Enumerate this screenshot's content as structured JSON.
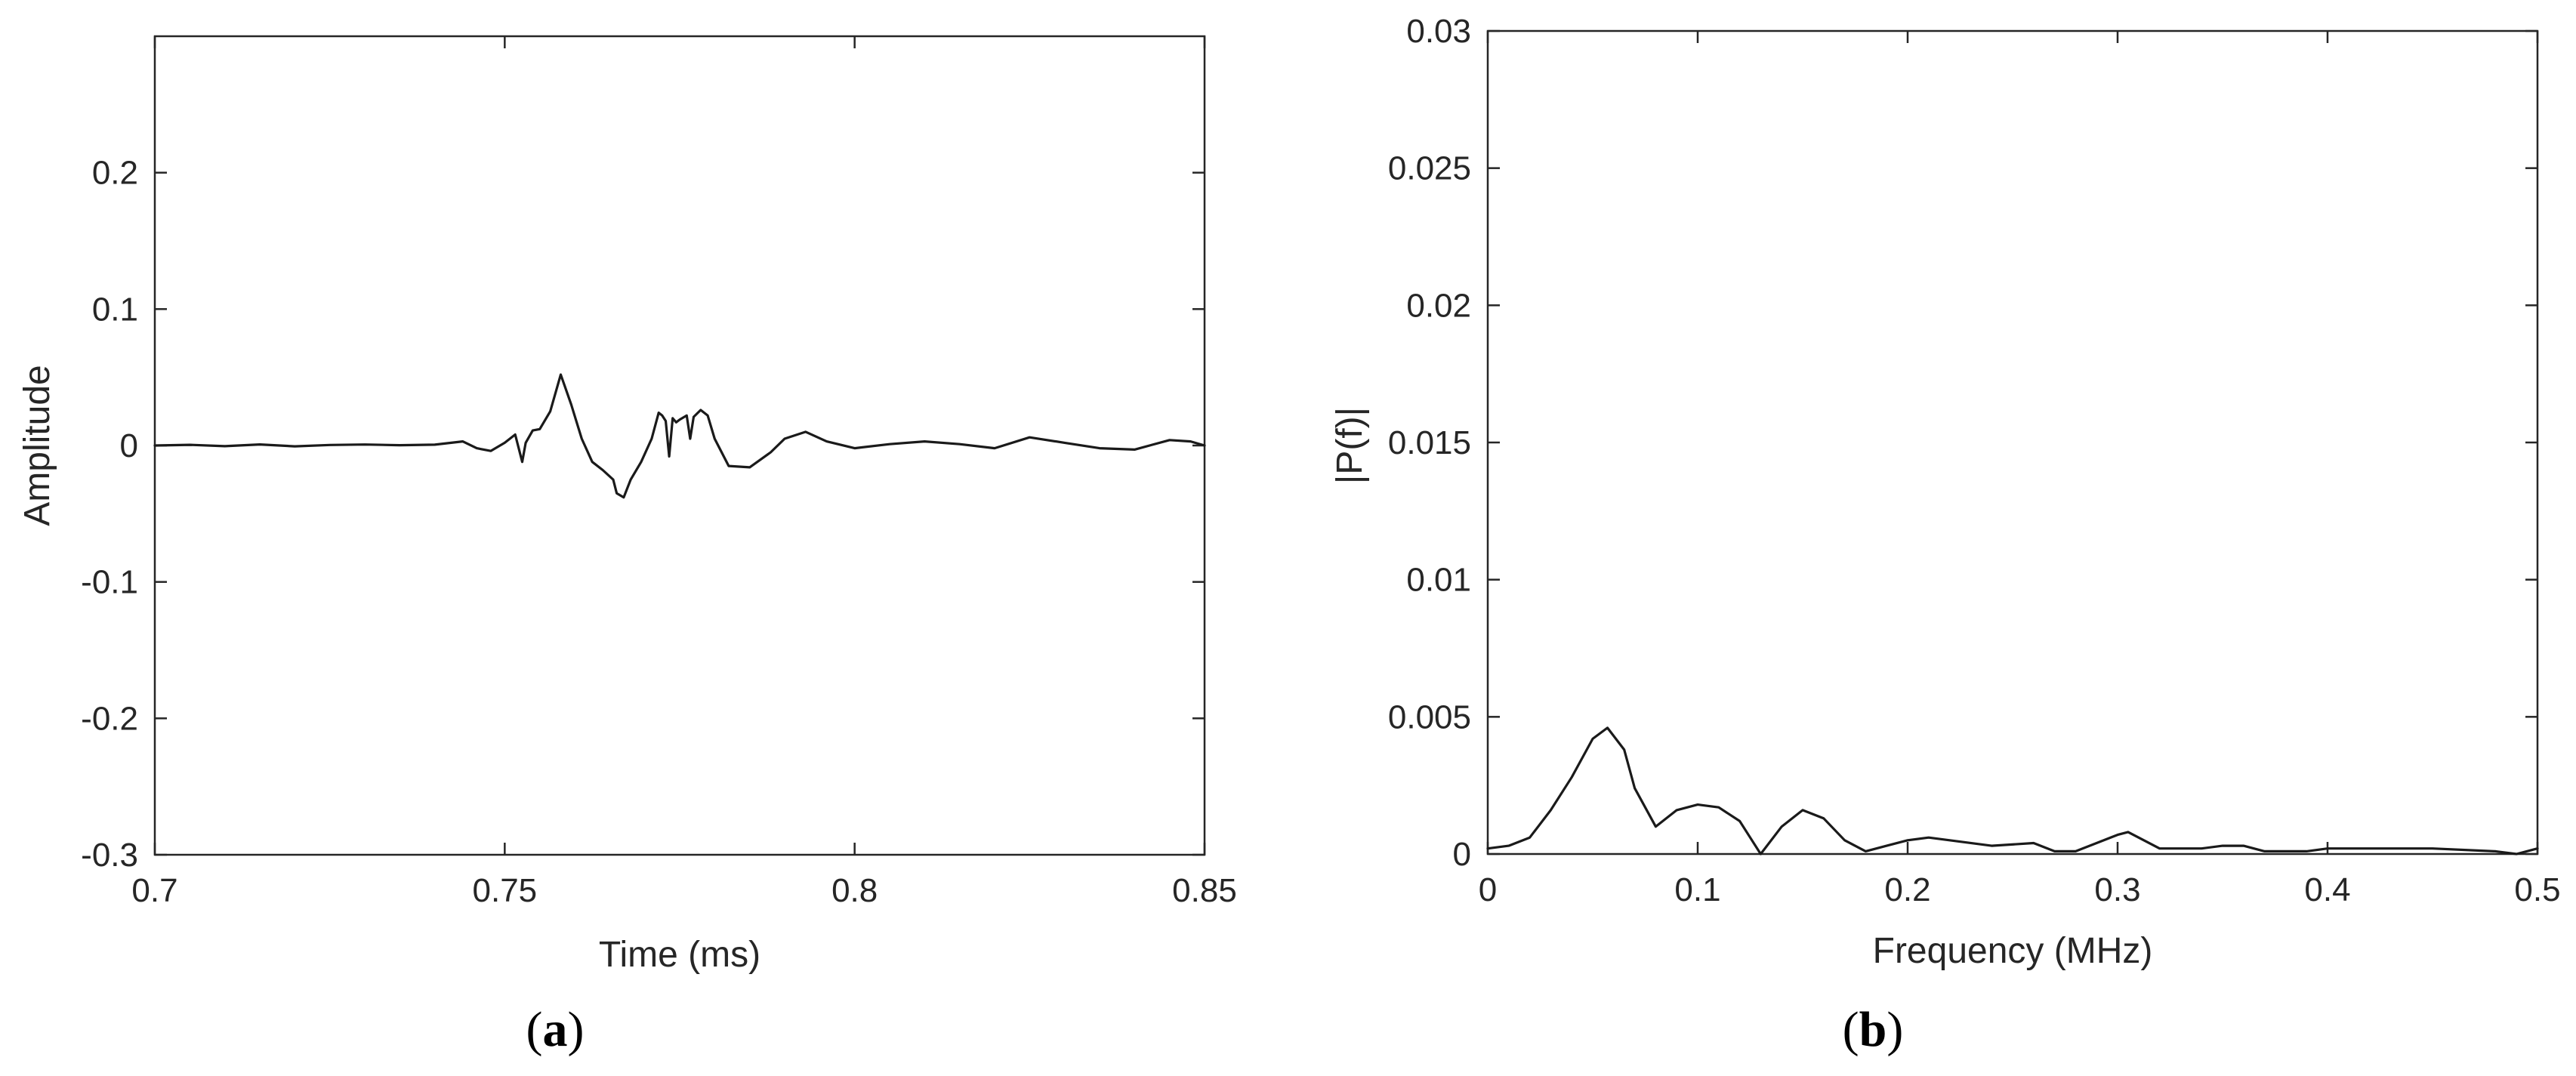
{
  "chart_data": [
    {
      "type": "line",
      "panel_label": "a",
      "xlabel": "Time (ms)",
      "ylabel": "Amplitude",
      "xlim": [
        0.7,
        0.85
      ],
      "ylim": [
        -0.3,
        0.3
      ],
      "xticks": [
        0.7,
        0.75,
        0.8,
        0.85
      ],
      "xtick_labels": [
        "0.7",
        "0.75",
        "0.8",
        "0.85"
      ],
      "yticks": [
        -0.3,
        -0.2,
        -0.1,
        0,
        0.1,
        0.2
      ],
      "ytick_labels": [
        "-0.3",
        "-0.2",
        "-0.1",
        "0",
        "0.1",
        "0.2"
      ],
      "grid": false,
      "series": [
        {
          "x": [
            0.7,
            0.705,
            0.71,
            0.715,
            0.72,
            0.725,
            0.73,
            0.735,
            0.74,
            0.744,
            0.746,
            0.748,
            0.75,
            0.7515,
            0.7525,
            0.753,
            0.754,
            0.755,
            0.7565,
            0.758,
            0.7595,
            0.761,
            0.7625,
            0.764,
            0.7655,
            0.766,
            0.767,
            0.768,
            0.7695,
            0.771,
            0.772,
            0.7725,
            0.773,
            0.7735,
            0.774,
            0.7745,
            0.775,
            0.776,
            0.7765,
            0.777,
            0.778,
            0.779,
            0.78,
            0.782,
            0.785,
            0.788,
            0.79,
            0.793,
            0.796,
            0.8,
            0.805,
            0.81,
            0.815,
            0.82,
            0.825,
            0.83,
            0.835,
            0.84,
            0.845,
            0.848,
            0.85
          ],
          "y": [
            0,
            0.0005,
            -0.0005,
            0.0008,
            -0.0006,
            0.0004,
            0.0007,
            0.0002,
            0.0006,
            0.003,
            -0.002,
            -0.004,
            0.002,
            0.008,
            -0.012,
            0.002,
            0.011,
            0.012,
            0.025,
            0.052,
            0.03,
            0.005,
            -0.012,
            -0.018,
            -0.025,
            -0.035,
            -0.038,
            -0.025,
            -0.012,
            0.005,
            0.024,
            0.022,
            0.018,
            -0.008,
            0.02,
            0.017,
            0.019,
            0.022,
            0.005,
            0.021,
            0.026,
            0.022,
            0.005,
            -0.015,
            -0.016,
            -0.005,
            0.005,
            0.01,
            0.003,
            -0.002,
            0.001,
            0.003,
            0.001,
            -0.002,
            0.006,
            0.002,
            -0.002,
            -0.003,
            0.004,
            0.003,
            0
          ]
        }
      ]
    },
    {
      "type": "line",
      "panel_label": "b",
      "xlabel": "Frequency (MHz)",
      "ylabel": "|P(f)|",
      "xlim": [
        0,
        0.5
      ],
      "ylim": [
        0,
        0.03
      ],
      "xticks": [
        0,
        0.1,
        0.2,
        0.3,
        0.4,
        0.5
      ],
      "xtick_labels": [
        "0",
        "0.1",
        "0.2",
        "0.3",
        "0.4",
        "0.5"
      ],
      "yticks": [
        0,
        0.005,
        0.01,
        0.015,
        0.02,
        0.025,
        0.03
      ],
      "ytick_labels": [
        "0",
        "0.005",
        "0.01",
        "0.015",
        "0.02",
        "0.025",
        "0.03"
      ],
      "grid": false,
      "series": [
        {
          "x": [
            0,
            0.01,
            0.02,
            0.03,
            0.04,
            0.05,
            0.057,
            0.065,
            0.07,
            0.08,
            0.09,
            0.1,
            0.11,
            0.12,
            0.125,
            0.13,
            0.14,
            0.15,
            0.16,
            0.17,
            0.18,
            0.19,
            0.2,
            0.21,
            0.22,
            0.24,
            0.26,
            0.27,
            0.28,
            0.29,
            0.3,
            0.305,
            0.31,
            0.32,
            0.34,
            0.35,
            0.36,
            0.37,
            0.38,
            0.39,
            0.4,
            0.42,
            0.45,
            0.48,
            0.49,
            0.5
          ],
          "y": [
            0.0002,
            0.0003,
            0.0006,
            0.0016,
            0.0028,
            0.0042,
            0.0046,
            0.0038,
            0.0024,
            0.001,
            0.0016,
            0.0018,
            0.0017,
            0.0012,
            0.0006,
            0,
            0.001,
            0.0016,
            0.0013,
            0.0005,
            0.0001,
            0.0003,
            0.0005,
            0.0006,
            0.0005,
            0.0003,
            0.0004,
            0.0001,
            0.0001,
            0.0004,
            0.0007,
            0.0008,
            0.0006,
            0.0002,
            0.0002,
            0.0003,
            0.0003,
            0.0001,
            0.0001,
            0.0001,
            0.0002,
            0.0002,
            0.0002,
            0.0001,
            0,
            0.0002
          ]
        }
      ]
    }
  ]
}
